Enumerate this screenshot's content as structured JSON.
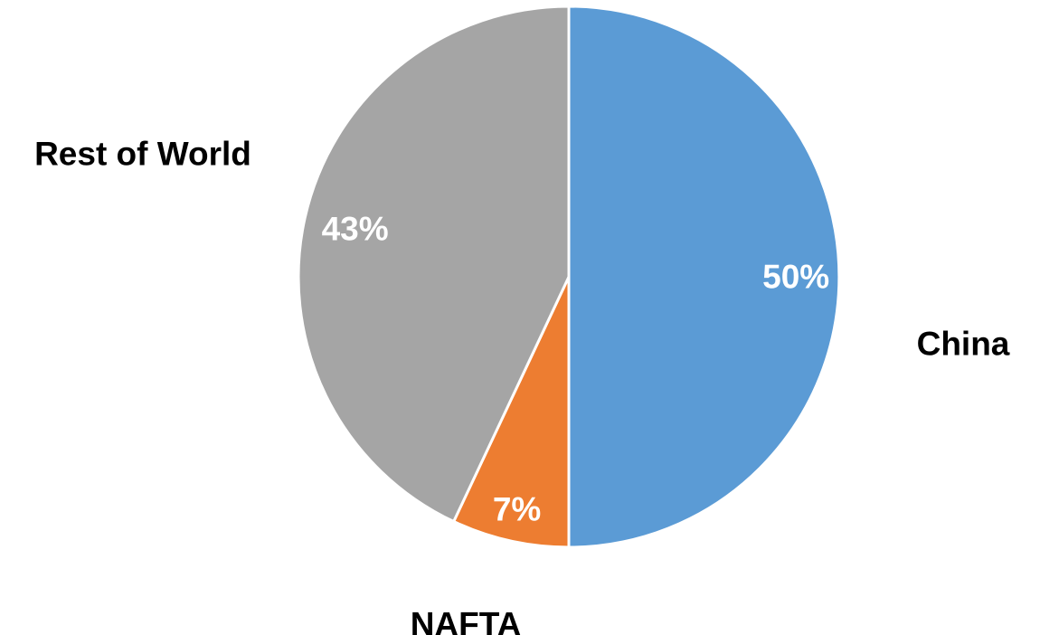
{
  "chart_data": {
    "type": "pie",
    "title": "",
    "slices": [
      {
        "label": "China",
        "value": 50,
        "value_label": "50%",
        "color": "#5B9BD5"
      },
      {
        "label": "NAFTA",
        "value": 7,
        "value_label": "7%",
        "color": "#ED7D31"
      },
      {
        "label": "Rest of World",
        "value": 43,
        "value_label": "43%",
        "color": "#A5A5A5"
      }
    ],
    "start": "12 o'clock",
    "direction": "clockwise",
    "slice_border_color": "#FFFFFF",
    "legend": "none"
  }
}
